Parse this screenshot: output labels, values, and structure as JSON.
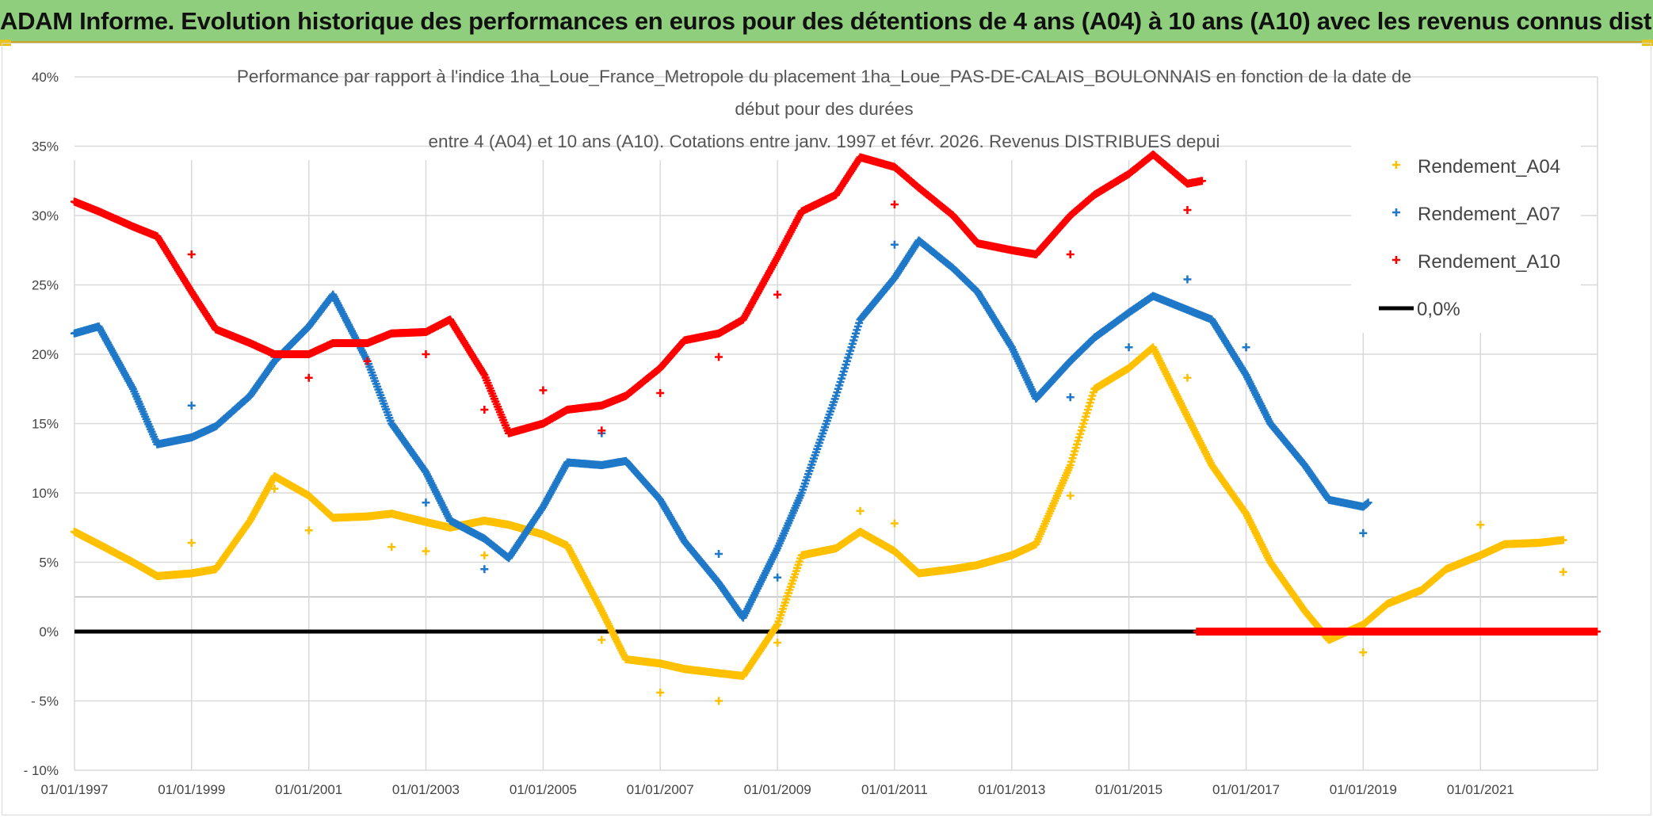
{
  "banner": {
    "title": "ADAM Informe. Evolution historique des performances en euros pour des détentions de 4 ans (A04) à 10 ans (A10) avec les revenus connus distribués"
  },
  "colors": {
    "banner_bg": "#8fce7c",
    "A04": "#ffc000",
    "A07": "#1f78c8",
    "A10": "#ff0000",
    "zero": "#000000",
    "grid": "#d9d9d9"
  },
  "chart_data": {
    "type": "scatter",
    "title_lines": [
      "Performance par rapport à l'indice 1ha_Loue_France_Metropole  du placement 1ha_Loue_PAS-DE-CALAIS_BOULONNAIS en fonction de la date de",
      "début pour des durées",
      "entre 4 (A04) et 10 ans (A10). Cotations entre janv. 1997 et févr. 2026. Revenus DISTRIBUES depui"
    ],
    "y_ticks": [
      "40%",
      "35%",
      "30%",
      "25%",
      "20%",
      "15%",
      "10%",
      "5%",
      "0%",
      "- 5%",
      "- 10%"
    ],
    "ylim": [
      -10,
      40
    ],
    "x_ticks": [
      "01/01/1997",
      "01/01/1999",
      "01/01/2001",
      "01/01/2003",
      "01/01/2005",
      "01/01/2007",
      "01/01/2009",
      "01/01/2011",
      "01/01/2013",
      "01/01/2015",
      "01/01/2017",
      "01/01/2019",
      "01/01/2021"
    ],
    "xlim": [
      "1997-01-01",
      "2023-01-01"
    ],
    "grid": true,
    "legend_position": "top-right",
    "series": [
      {
        "name": "Rendement_A04",
        "color": "#ffc000",
        "marker": "+",
        "points": [
          [
            "1997-01",
            7.2
          ],
          [
            "1997-06",
            6.3
          ],
          [
            "1998-01",
            5.0
          ],
          [
            "1998-06",
            4.0
          ],
          [
            "1999-01",
            4.2
          ],
          [
            "1999-06",
            4.5
          ],
          [
            "2000-01",
            8.0
          ],
          [
            "2000-06",
            11.2
          ],
          [
            "2001-01",
            9.8
          ],
          [
            "2001-06",
            8.2
          ],
          [
            "2002-01",
            8.3
          ],
          [
            "2002-06",
            8.5
          ],
          [
            "2003-01",
            7.9
          ],
          [
            "2003-06",
            7.5
          ],
          [
            "2004-01",
            8.0
          ],
          [
            "2004-06",
            7.7
          ],
          [
            "2005-01",
            7.0
          ],
          [
            "2005-06",
            6.2
          ],
          [
            "2006-01",
            1.5
          ],
          [
            "2006-06",
            -2.0
          ],
          [
            "2007-01",
            -2.3
          ],
          [
            "2007-06",
            -2.7
          ],
          [
            "2008-01",
            -3.0
          ],
          [
            "2008-06",
            -3.2
          ],
          [
            "2009-01",
            0.5
          ],
          [
            "2009-06",
            5.5
          ],
          [
            "2010-01",
            6.0
          ],
          [
            "2010-06",
            7.2
          ],
          [
            "2011-01",
            5.8
          ],
          [
            "2011-06",
            4.2
          ],
          [
            "2012-01",
            4.5
          ],
          [
            "2012-06",
            4.8
          ],
          [
            "2013-01",
            5.5
          ],
          [
            "2013-06",
            6.3
          ],
          [
            "2014-01",
            12.0
          ],
          [
            "2014-06",
            17.5
          ],
          [
            "2015-01",
            19.0
          ],
          [
            "2015-06",
            20.5
          ],
          [
            "2016-01",
            15.5
          ],
          [
            "2016-06",
            12.0
          ],
          [
            "2017-01",
            8.5
          ],
          [
            "2017-06",
            5.0
          ],
          [
            "2018-01",
            1.5
          ],
          [
            "2018-06",
            -0.6
          ],
          [
            "2019-01",
            0.5
          ],
          [
            "2019-06",
            2.0
          ],
          [
            "2020-01",
            3.0
          ],
          [
            "2020-06",
            4.5
          ],
          [
            "2021-01",
            5.5
          ],
          [
            "2021-06",
            6.3
          ],
          [
            "2022-01",
            6.4
          ],
          [
            "2022-06",
            6.6
          ]
        ],
        "outliers": [
          [
            "1999-01",
            6.4
          ],
          [
            "2000-06",
            10.3
          ],
          [
            "2001-01",
            7.3
          ],
          [
            "2002-06",
            6.1
          ],
          [
            "2003-01",
            5.8
          ],
          [
            "2004-01",
            5.5
          ],
          [
            "2006-01",
            -0.6
          ],
          [
            "2007-01",
            -4.4
          ],
          [
            "2008-01",
            -5.0
          ],
          [
            "2009-01",
            -0.8
          ],
          [
            "2010-06",
            8.7
          ],
          [
            "2011-01",
            7.8
          ],
          [
            "2014-01",
            9.8
          ],
          [
            "2016-01",
            18.3
          ],
          [
            "2019-01",
            -1.5
          ],
          [
            "2021-01",
            7.7
          ],
          [
            "2022-06",
            4.3
          ]
        ]
      },
      {
        "name": "Rendement_A07",
        "color": "#1f78c8",
        "marker": "+",
        "points": [
          [
            "1997-01",
            21.5
          ],
          [
            "1997-06",
            22.0
          ],
          [
            "1998-01",
            17.5
          ],
          [
            "1998-06",
            13.5
          ],
          [
            "1999-01",
            14.0
          ],
          [
            "1999-06",
            14.8
          ],
          [
            "2000-01",
            17.0
          ],
          [
            "2000-06",
            19.5
          ],
          [
            "2001-01",
            22.0
          ],
          [
            "2001-06",
            24.3
          ],
          [
            "2002-01",
            19.5
          ],
          [
            "2002-06",
            15.0
          ],
          [
            "2003-01",
            11.5
          ],
          [
            "2003-06",
            8.0
          ],
          [
            "2004-01",
            6.7
          ],
          [
            "2004-06",
            5.3
          ],
          [
            "2005-01",
            9.0
          ],
          [
            "2005-06",
            12.2
          ],
          [
            "2006-01",
            12.0
          ],
          [
            "2006-06",
            12.3
          ],
          [
            "2007-01",
            9.5
          ],
          [
            "2007-06",
            6.5
          ],
          [
            "2008-01",
            3.5
          ],
          [
            "2008-06",
            1.0
          ],
          [
            "2009-01",
            6.0
          ],
          [
            "2009-06",
            10.0
          ],
          [
            "2010-01",
            17.0
          ],
          [
            "2010-06",
            22.5
          ],
          [
            "2011-01",
            25.5
          ],
          [
            "2011-06",
            28.2
          ],
          [
            "2012-01",
            26.2
          ],
          [
            "2012-06",
            24.5
          ],
          [
            "2013-01",
            20.5
          ],
          [
            "2013-06",
            16.8
          ],
          [
            "2014-01",
            19.5
          ],
          [
            "2014-06",
            21.2
          ],
          [
            "2015-01",
            23.0
          ],
          [
            "2015-06",
            24.2
          ],
          [
            "2016-01",
            23.2
          ],
          [
            "2016-06",
            22.5
          ],
          [
            "2017-01",
            18.5
          ],
          [
            "2017-06",
            15.0
          ],
          [
            "2018-01",
            12.0
          ],
          [
            "2018-06",
            9.5
          ],
          [
            "2019-01",
            9.0
          ],
          [
            "2019-02",
            9.3
          ]
        ],
        "outliers": [
          [
            "1999-01",
            16.3
          ],
          [
            "2000-06",
            19.8
          ],
          [
            "2003-01",
            9.3
          ],
          [
            "2004-01",
            4.5
          ],
          [
            "2006-01",
            14.3
          ],
          [
            "2008-01",
            5.6
          ],
          [
            "2009-01",
            3.9
          ],
          [
            "2011-01",
            27.9
          ],
          [
            "2014-01",
            16.9
          ],
          [
            "2015-01",
            20.5
          ],
          [
            "2016-01",
            25.4
          ],
          [
            "2017-01",
            20.5
          ],
          [
            "2019-01",
            7.1
          ]
        ]
      },
      {
        "name": "Rendement_A10",
        "color": "#ff0000",
        "marker": "+",
        "points": [
          [
            "1997-01",
            31.0
          ],
          [
            "1997-06",
            30.3
          ],
          [
            "1998-01",
            29.2
          ],
          [
            "1998-06",
            28.5
          ],
          [
            "1999-01",
            24.5
          ],
          [
            "1999-06",
            21.8
          ],
          [
            "2000-01",
            20.8
          ],
          [
            "2000-06",
            20.0
          ],
          [
            "2001-01",
            20.0
          ],
          [
            "2001-06",
            20.8
          ],
          [
            "2002-01",
            20.8
          ],
          [
            "2002-06",
            21.5
          ],
          [
            "2003-01",
            21.6
          ],
          [
            "2003-06",
            22.5
          ],
          [
            "2004-01",
            18.5
          ],
          [
            "2004-06",
            14.3
          ],
          [
            "2005-01",
            15.0
          ],
          [
            "2005-06",
            16.0
          ],
          [
            "2006-01",
            16.3
          ],
          [
            "2006-06",
            17.0
          ],
          [
            "2007-01",
            19.0
          ],
          [
            "2007-06",
            21.0
          ],
          [
            "2008-01",
            21.5
          ],
          [
            "2008-06",
            22.5
          ],
          [
            "2009-01",
            27.0
          ],
          [
            "2009-06",
            30.3
          ],
          [
            "2010-01",
            31.5
          ],
          [
            "2010-06",
            34.2
          ],
          [
            "2011-01",
            33.5
          ],
          [
            "2011-06",
            32.0
          ],
          [
            "2012-01",
            30.0
          ],
          [
            "2012-06",
            28.0
          ],
          [
            "2013-01",
            27.5
          ],
          [
            "2013-06",
            27.2
          ],
          [
            "2014-01",
            30.0
          ],
          [
            "2014-06",
            31.5
          ],
          [
            "2015-01",
            33.0
          ],
          [
            "2015-06",
            34.4
          ],
          [
            "2016-01",
            32.3
          ],
          [
            "2016-04",
            32.5
          ]
        ],
        "outliers": [
          [
            "1999-01",
            27.2
          ],
          [
            "2001-01",
            18.3
          ],
          [
            "2002-01",
            19.5
          ],
          [
            "2003-01",
            20.0
          ],
          [
            "2004-01",
            16.0
          ],
          [
            "2005-01",
            17.4
          ],
          [
            "2006-01",
            14.5
          ],
          [
            "2007-01",
            17.2
          ],
          [
            "2008-01",
            19.8
          ],
          [
            "2009-01",
            24.3
          ],
          [
            "2011-01",
            30.8
          ],
          [
            "2014-01",
            27.2
          ],
          [
            "2016-01",
            30.4
          ]
        ],
        "zero_segment": [
          "2016-03",
          "2023-01"
        ]
      }
    ],
    "zero_line": {
      "name": "0,0%",
      "value": 0
    }
  }
}
